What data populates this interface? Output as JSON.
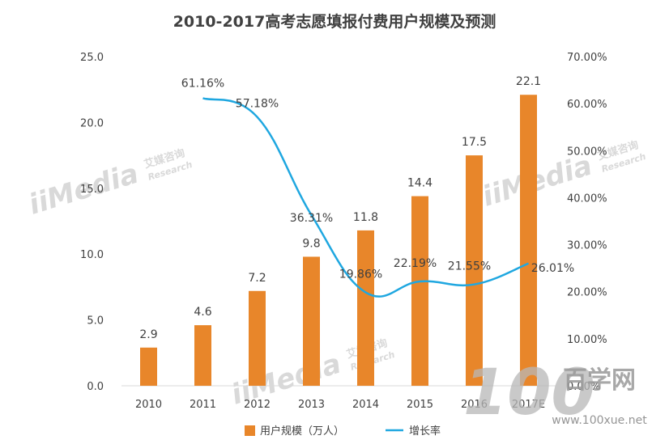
{
  "chart_data": {
    "type": "bar",
    "title": "2010-2017高考志愿填报付费用户规模及预测",
    "categories": [
      "2010",
      "2011",
      "2012",
      "2013",
      "2014",
      "2015",
      "2016",
      "2017E"
    ],
    "series": [
      {
        "name": "用户规模（万人）",
        "type": "bar",
        "axis": "left",
        "values": [
          2.9,
          4.6,
          7.2,
          9.8,
          11.8,
          14.4,
          17.5,
          22.1
        ],
        "labels": [
          "2.9",
          "4.6",
          "7.2",
          "9.8",
          "11.8",
          "14.4",
          "17.5",
          "22.1"
        ],
        "color": "#e8862a"
      },
      {
        "name": "增长率",
        "type": "line",
        "axis": "right",
        "values": [
          null,
          61.16,
          57.18,
          36.31,
          19.86,
          22.19,
          21.55,
          26.01
        ],
        "labels": [
          "",
          "61.16%",
          "57.18%",
          "36.31%",
          "19.86%",
          "22.19%",
          "21.55%",
          "26.01%"
        ],
        "color": "#1fa7e0"
      }
    ],
    "y_left": {
      "range": [
        0,
        25
      ],
      "ticks": [
        "0.0",
        "5.0",
        "10.0",
        "15.0",
        "20.0",
        "25.0"
      ]
    },
    "y_right": {
      "range": [
        0,
        70
      ],
      "ticks": [
        "0.00%",
        "10.00%",
        "20.00%",
        "30.00%",
        "40.00%",
        "50.00%",
        "60.00%",
        "70.00%"
      ]
    },
    "grid": false,
    "legend": "bottom"
  },
  "watermarks": {
    "brand": "iiMedia",
    "brand_cn": "艾媒咨询",
    "brand_en": "Research",
    "site_logo": "100",
    "site_name": "百学网",
    "site_url": "www.100xue.net"
  }
}
